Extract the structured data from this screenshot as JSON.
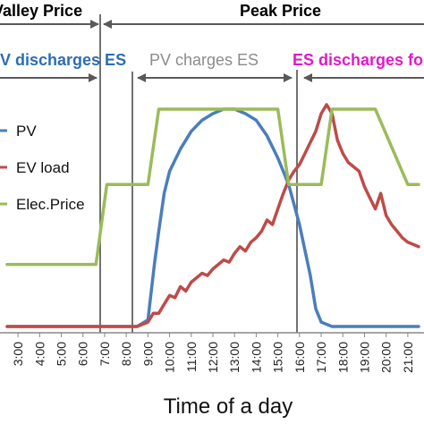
{
  "chart_data": {
    "type": "line",
    "xlabel": "Time of a day",
    "ylabel": "",
    "x_ticks": [
      "3:00",
      "4:00",
      "5:00",
      "6:00",
      "7:00",
      "8:00",
      "9:00",
      "10:00",
      "11:00",
      "12:00",
      "13:00",
      "14:00",
      "15:00",
      "16:00",
      "17:00",
      "18:00",
      "19:00",
      "20:00",
      "21:00"
    ],
    "xlim": [
      2.5,
      21.5
    ],
    "ylim": [
      0,
      1
    ],
    "grid": false,
    "legend_position": "left",
    "period_labels": [
      {
        "text": "Valley Price",
        "color": "#000000"
      },
      {
        "text": "Peak Price",
        "color": "#000000"
      },
      {
        "text": "PV discharges ES",
        "color": "#2e6db4"
      },
      {
        "text": "PV charges ES",
        "color": "#8c8c8c"
      },
      {
        "text": "ES discharges fo",
        "color": "#e01ac8"
      }
    ],
    "vertical_markers": [
      7.2,
      16.0
    ],
    "series": [
      {
        "name": "PV",
        "color": "#4a7ebb",
        "x": [
          2.5,
          8.5,
          9.0,
          9.3,
          9.5,
          9.75,
          10.0,
          10.5,
          11.0,
          11.5,
          12.0,
          12.5,
          13.0,
          13.5,
          14.0,
          14.5,
          15.0,
          15.5,
          16.0,
          16.5,
          16.75,
          17.0,
          17.5,
          21.5
        ],
        "y": [
          0.02,
          0.02,
          0.05,
          0.3,
          0.45,
          0.62,
          0.72,
          0.82,
          0.9,
          0.95,
          0.98,
          1.0,
          1.0,
          0.98,
          0.95,
          0.88,
          0.78,
          0.66,
          0.48,
          0.25,
          0.1,
          0.04,
          0.02,
          0.02
        ]
      },
      {
        "name": "EV load",
        "color": "#be4b48",
        "x": [
          2.5,
          8.5,
          9.0,
          9.25,
          9.5,
          9.75,
          10.0,
          10.25,
          10.5,
          10.75,
          11.0,
          11.25,
          11.5,
          11.75,
          12.0,
          12.25,
          12.5,
          12.75,
          13.0,
          13.25,
          13.5,
          13.75,
          14.0,
          14.25,
          14.5,
          14.75,
          15.0,
          15.25,
          15.5,
          15.75,
          16.0,
          16.25,
          16.5,
          16.75,
          17.0,
          17.25,
          17.5,
          17.75,
          18.0,
          18.25,
          18.5,
          18.75,
          19.0,
          19.25,
          19.5,
          19.75,
          20.0,
          20.25,
          20.5,
          20.75,
          21.0,
          21.5
        ],
        "y": [
          0.02,
          0.02,
          0.04,
          0.08,
          0.08,
          0.12,
          0.16,
          0.15,
          0.2,
          0.18,
          0.22,
          0.24,
          0.26,
          0.25,
          0.28,
          0.3,
          0.32,
          0.31,
          0.35,
          0.38,
          0.36,
          0.4,
          0.42,
          0.45,
          0.5,
          0.48,
          0.55,
          0.62,
          0.68,
          0.72,
          0.75,
          0.8,
          0.85,
          0.9,
          0.98,
          1.02,
          0.98,
          0.86,
          0.8,
          0.76,
          0.74,
          0.72,
          0.65,
          0.6,
          0.55,
          0.62,
          0.52,
          0.48,
          0.45,
          0.42,
          0.4,
          0.38
        ]
      },
      {
        "name": "Elec.Price",
        "color": "#9bbb59",
        "x": [
          2.5,
          6.6,
          7.1,
          8.5,
          9.0,
          9.5,
          14.5,
          15.0,
          15.5,
          16.5,
          17.0,
          17.5,
          18.5,
          19.0,
          19.5,
          21.0,
          21.5
        ],
        "y": [
          0.3,
          0.3,
          0.66,
          0.66,
          0.66,
          1.0,
          1.0,
          1.0,
          0.66,
          0.66,
          0.66,
          1.0,
          1.0,
          1.0,
          1.0,
          0.66,
          0.66
        ]
      }
    ]
  }
}
